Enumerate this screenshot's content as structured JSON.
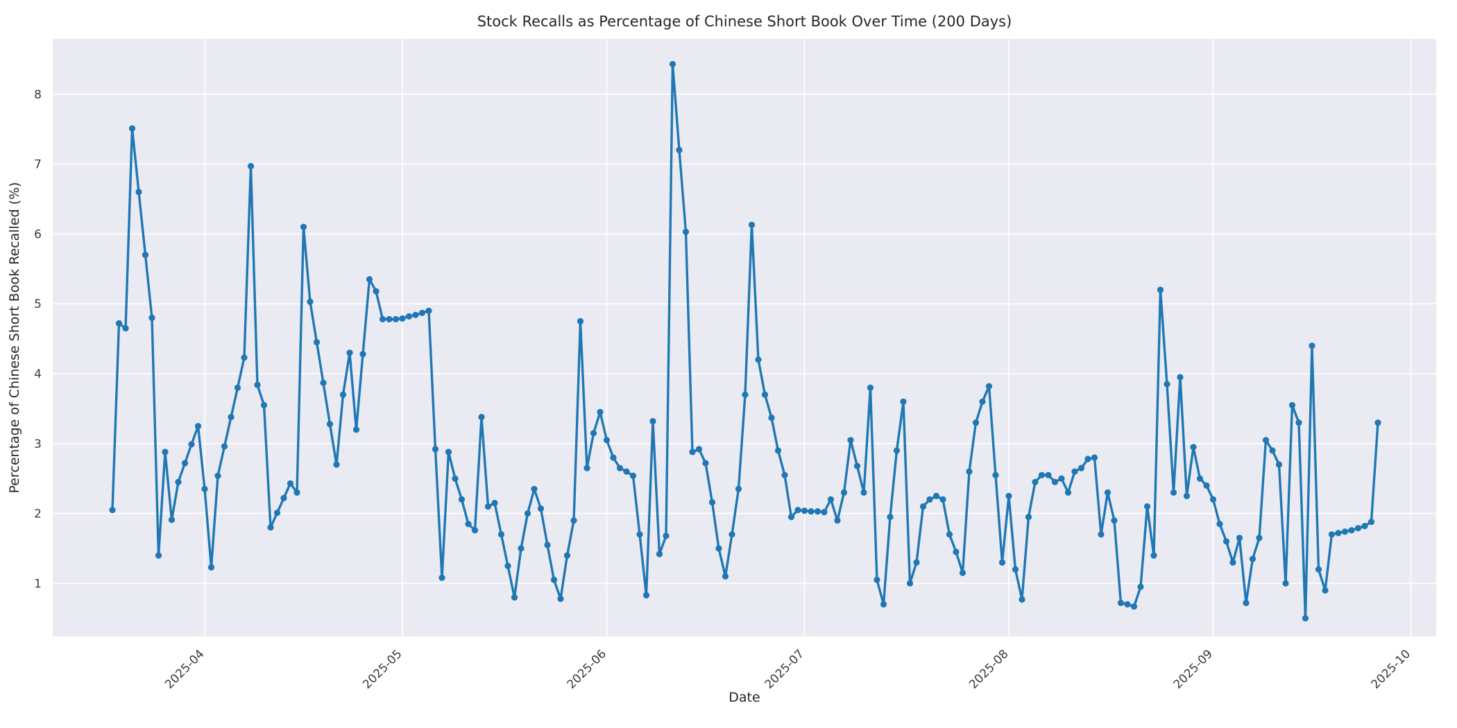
{
  "header": {
    "title": "Stock Recalls as Percentage of Chinese Short Book Over Time (200 Days)"
  },
  "chart_data": {
    "type": "line",
    "title": "Stock Recalls as Percentage of Chinese Short Book Over Time (200 Days)",
    "xlabel": "Date",
    "ylabel": "Percentage of Chinese Short Book Recalled (%)",
    "x_start_date": "2025-03-18",
    "x_frequency": "daily",
    "n_points": 193,
    "x_tick_labels": [
      "2025-04",
      "2025-05",
      "2025-06",
      "2025-07",
      "2025-08",
      "2025-09",
      "2025-10"
    ],
    "y_ticks": [
      1,
      2,
      3,
      4,
      5,
      6,
      7,
      8
    ],
    "ylim": [
      0.24,
      8.79
    ],
    "grid": "on",
    "legend": "none",
    "line_color": "#1f77b4",
    "plot_bg_color": "#eaeaf2",
    "grid_color": "#ffffff",
    "marker": "circle",
    "values": [
      2.05,
      4.72,
      4.65,
      7.51,
      6.6,
      5.7,
      4.8,
      1.4,
      2.88,
      1.91,
      2.45,
      2.72,
      2.99,
      3.25,
      2.35,
      1.23,
      2.54,
      2.96,
      3.38,
      3.8,
      4.23,
      6.97,
      3.84,
      3.55,
      1.8,
      2.01,
      2.22,
      2.43,
      2.3,
      6.1,
      5.03,
      4.45,
      3.87,
      3.28,
      2.7,
      3.7,
      4.3,
      3.2,
      4.28,
      5.35,
      5.18,
      4.78,
      4.78,
      4.78,
      4.79,
      4.82,
      4.84,
      4.87,
      4.9,
      2.92,
      1.08,
      2.88,
      2.5,
      2.2,
      1.85,
      1.76,
      3.38,
      2.1,
      2.15,
      1.7,
      1.25,
      0.8,
      1.5,
      2.0,
      2.35,
      2.07,
      1.55,
      1.05,
      0.78,
      1.4,
      1.9,
      4.75,
      2.65,
      3.15,
      3.45,
      3.05,
      2.8,
      2.65,
      2.6,
      2.54,
      1.7,
      0.83,
      3.32,
      1.42,
      1.68,
      8.43,
      7.2,
      6.03,
      2.88,
      2.92,
      2.72,
      2.16,
      1.5,
      1.1,
      1.7,
      2.35,
      3.7,
      6.13,
      4.2,
      3.7,
      3.37,
      2.9,
      2.55,
      1.95,
      2.05,
      2.04,
      2.03,
      2.03,
      2.02,
      2.2,
      1.9,
      2.3,
      3.05,
      2.68,
      2.3,
      3.8,
      1.05,
      0.7,
      1.95,
      2.9,
      3.6,
      1.0,
      1.3,
      2.1,
      2.2,
      2.25,
      2.2,
      1.7,
      1.45,
      1.15,
      2.6,
      3.3,
      3.6,
      3.82,
      2.55,
      1.3,
      2.25,
      1.2,
      0.77,
      1.95,
      2.45,
      2.55,
      2.55,
      2.45,
      2.5,
      2.3,
      2.6,
      2.65,
      2.78,
      2.8,
      1.7,
      2.3,
      1.9,
      0.72,
      0.7,
      0.67,
      0.95,
      2.1,
      1.4,
      5.2,
      3.85,
      2.3,
      3.95,
      2.25,
      2.95,
      2.5,
      2.4,
      2.2,
      1.85,
      1.6,
      1.3,
      1.65,
      0.72,
      1.35,
      1.65,
      3.05,
      2.9,
      2.7,
      1.0,
      3.55,
      3.3,
      0.5,
      4.4,
      1.2,
      0.9,
      1.7,
      1.72,
      1.74,
      1.76,
      1.79,
      1.82,
      1.88,
      3.3
    ]
  }
}
